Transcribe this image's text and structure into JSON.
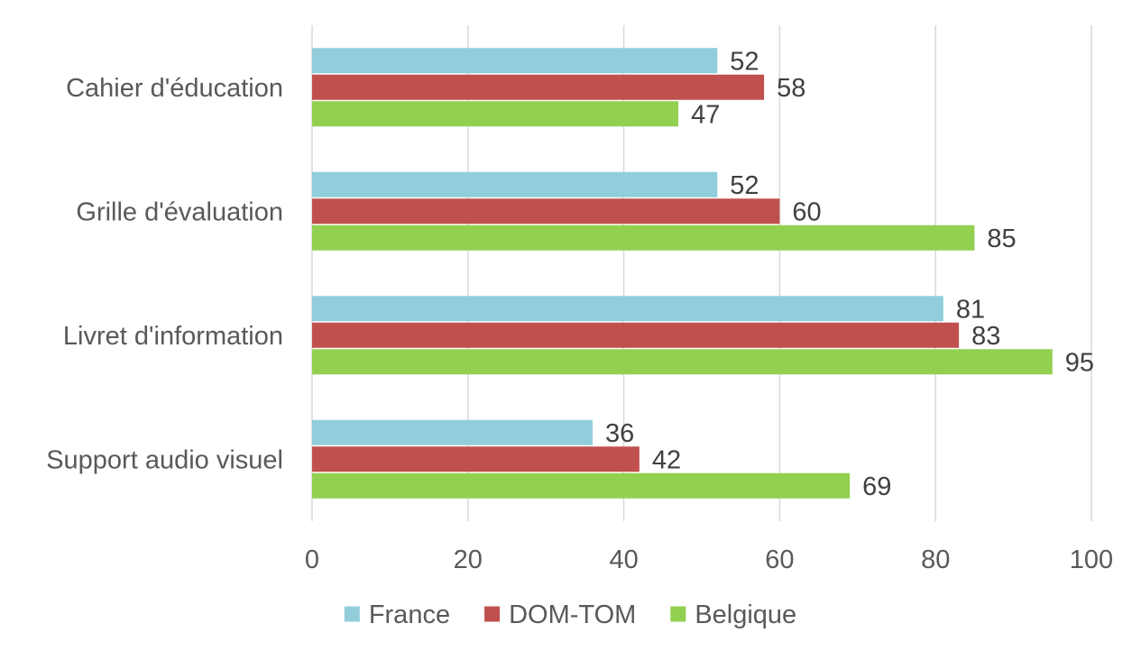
{
  "chart_data": {
    "type": "bar",
    "orientation": "horizontal",
    "categories": [
      "Cahier d'éducation",
      "Grille d'évaluation",
      "Livret d'information",
      "Support audio visuel"
    ],
    "series": [
      {
        "name": "France",
        "color": "#92cddc",
        "values": [
          52,
          52,
          81,
          36
        ]
      },
      {
        "name": "DOM-TOM",
        "color": "#c0504d",
        "values": [
          58,
          60,
          83,
          42
        ]
      },
      {
        "name": "Belgique",
        "color": "#92d050",
        "values": [
          47,
          85,
          95,
          69
        ]
      }
    ],
    "xlim": [
      0,
      100
    ],
    "x_ticks": [
      0,
      20,
      40,
      60,
      80,
      100
    ],
    "grid": "vertical",
    "legend": "bottom",
    "data_labels": true
  }
}
